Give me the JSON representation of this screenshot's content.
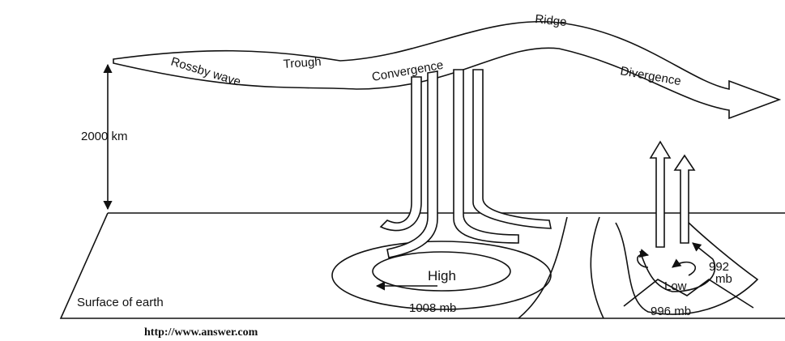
{
  "labels": {
    "ridge": "Ridge",
    "trough": "Trough",
    "convergence": "Convergence",
    "divergence": "Divergence",
    "rossby_wave": "Rossby wave",
    "height": "2000 km",
    "high": "High",
    "high_pressure": "1008 mb",
    "low": "Low",
    "low_pressure_value": "992",
    "low_pressure_unit": "mb",
    "low_pressure_outer": "996 mb",
    "surface": "Surface of earth"
  },
  "credit": "http://www.answer.com"
}
